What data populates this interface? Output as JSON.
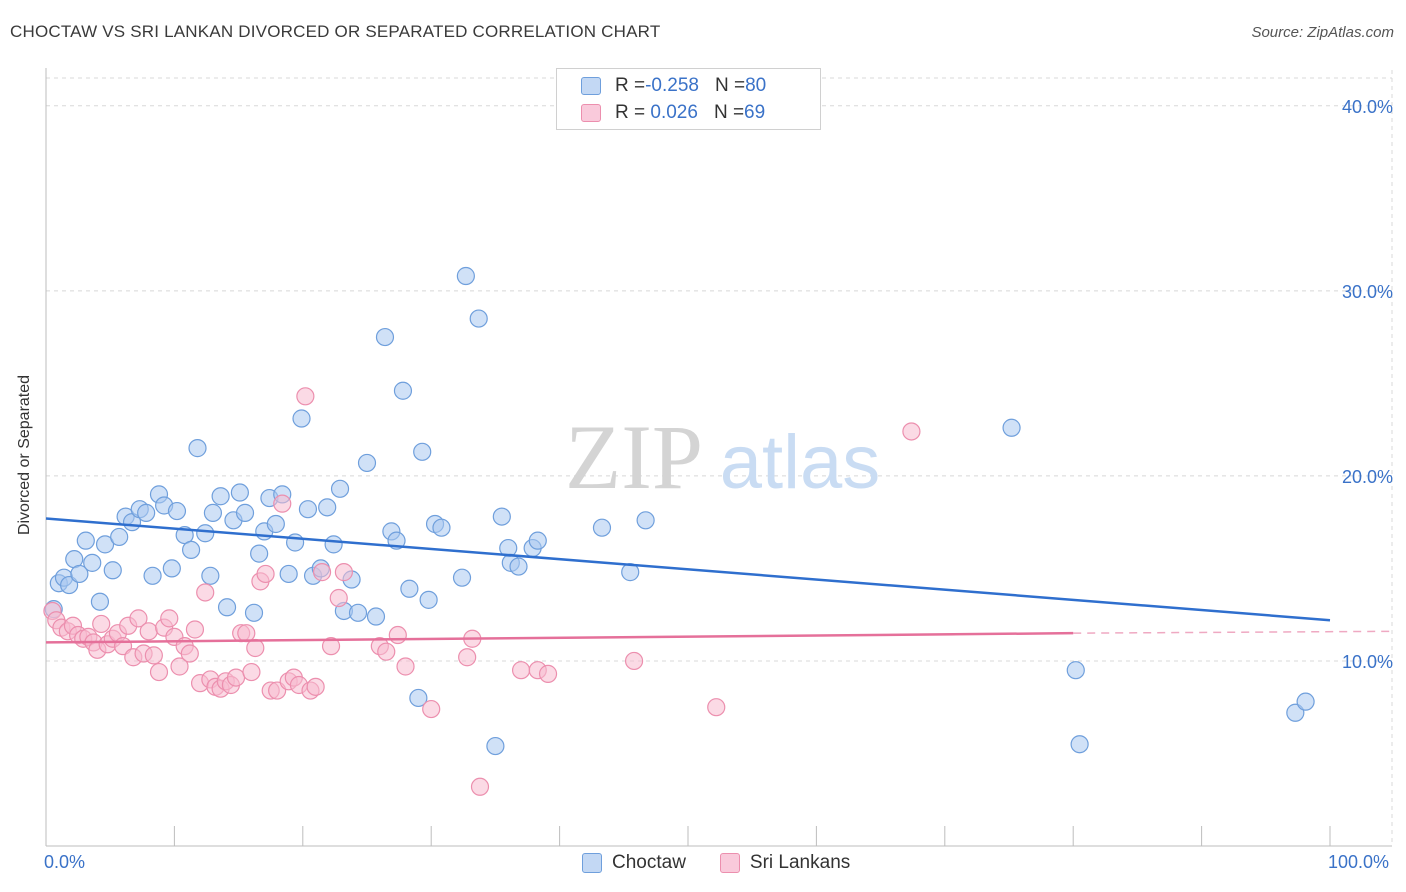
{
  "header": {
    "title": "CHOCTAW VS SRI LANKAN DIVORCED OR SEPARATED CORRELATION CHART",
    "source": "Source: ZipAtlas.com"
  },
  "watermark": {
    "part1": "ZIP",
    "part2": "atlas"
  },
  "legend": {
    "rows": [
      {
        "r_label": "R = ",
        "r_value": "-0.258",
        "n_label": "N = ",
        "n_value": "80"
      },
      {
        "r_label": "R = ",
        "r_value": " 0.026",
        "n_label": "N = ",
        "n_value": "69"
      }
    ]
  },
  "colors": {
    "choctaw_fill": "#a9c8f0",
    "choctaw_stroke": "#6f9fdc",
    "choctaw_line": "#2f6fce",
    "srilankan_fill": "#f7bcd0",
    "srilankan_stroke": "#ec8fae",
    "srilankan_line": "#e5709a",
    "tick_label": "#3a72c8",
    "grid": "#d8d8d8"
  },
  "chart_data": {
    "type": "scatter",
    "title": "CHOCTAW VS SRI LANKAN DIVORCED OR SEPARATED CORRELATION CHART",
    "xlabel": "",
    "ylabel": "Divorced or Separated",
    "xlim": [
      0,
      100
    ],
    "ylim": [
      0,
      41.5
    ],
    "x_tick_labels": [
      "0.0%",
      "100.0%"
    ],
    "y_ticks": [
      10,
      20,
      30,
      40
    ],
    "y_tick_labels": [
      "10.0%",
      "20.0%",
      "30.0%",
      "40.0%"
    ],
    "grid": true,
    "legend_position": "bottom-center",
    "series": [
      {
        "name": "Choctaw",
        "r": -0.258,
        "n": 80,
        "trend": {
          "x": [
            0,
            100
          ],
          "y": [
            17.7,
            12.2
          ]
        },
        "points": [
          [
            0.6,
            12.8
          ],
          [
            1.0,
            14.2
          ],
          [
            1.4,
            14.5
          ],
          [
            1.8,
            14.1
          ],
          [
            2.2,
            15.5
          ],
          [
            2.6,
            14.7
          ],
          [
            3.1,
            16.5
          ],
          [
            3.6,
            15.3
          ],
          [
            4.2,
            13.2
          ],
          [
            4.6,
            16.3
          ],
          [
            5.2,
            14.9
          ],
          [
            5.7,
            16.7
          ],
          [
            6.2,
            17.8
          ],
          [
            6.7,
            17.5
          ],
          [
            7.3,
            18.2
          ],
          [
            7.8,
            18.0
          ],
          [
            8.3,
            14.6
          ],
          [
            8.8,
            19.0
          ],
          [
            9.2,
            18.4
          ],
          [
            9.8,
            15.0
          ],
          [
            10.2,
            18.1
          ],
          [
            10.8,
            16.8
          ],
          [
            11.3,
            16.0
          ],
          [
            11.8,
            21.5
          ],
          [
            12.4,
            16.9
          ],
          [
            12.8,
            14.6
          ],
          [
            13.0,
            18.0
          ],
          [
            13.6,
            18.9
          ],
          [
            14.1,
            12.9
          ],
          [
            14.6,
            17.6
          ],
          [
            15.1,
            19.1
          ],
          [
            15.5,
            18.0
          ],
          [
            16.2,
            12.6
          ],
          [
            16.6,
            15.8
          ],
          [
            17.0,
            17.0
          ],
          [
            17.4,
            18.8
          ],
          [
            17.9,
            17.4
          ],
          [
            18.4,
            19.0
          ],
          [
            18.9,
            14.7
          ],
          [
            19.4,
            16.4
          ],
          [
            19.9,
            23.1
          ],
          [
            20.4,
            18.2
          ],
          [
            20.8,
            14.6
          ],
          [
            21.4,
            15.0
          ],
          [
            21.9,
            18.3
          ],
          [
            22.4,
            16.3
          ],
          [
            22.9,
            19.3
          ],
          [
            23.2,
            12.7
          ],
          [
            23.8,
            14.4
          ],
          [
            24.3,
            12.6
          ],
          [
            25.0,
            20.7
          ],
          [
            25.7,
            12.4
          ],
          [
            26.4,
            27.5
          ],
          [
            26.9,
            17.0
          ],
          [
            27.3,
            16.5
          ],
          [
            27.8,
            24.6
          ],
          [
            28.3,
            13.9
          ],
          [
            29.0,
            8.0
          ],
          [
            29.3,
            21.3
          ],
          [
            29.8,
            13.3
          ],
          [
            30.3,
            17.4
          ],
          [
            30.8,
            17.2
          ],
          [
            32.4,
            14.5
          ],
          [
            32.7,
            30.8
          ],
          [
            33.7,
            28.5
          ],
          [
            35.0,
            5.4
          ],
          [
            35.5,
            17.8
          ],
          [
            36.0,
            16.1
          ],
          [
            36.2,
            15.3
          ],
          [
            36.8,
            15.1
          ],
          [
            37.9,
            16.1
          ],
          [
            38.3,
            16.5
          ],
          [
            43.3,
            17.2
          ],
          [
            45.5,
            14.8
          ],
          [
            46.7,
            17.6
          ],
          [
            75.2,
            22.6
          ],
          [
            80.2,
            9.5
          ],
          [
            80.5,
            5.5
          ],
          [
            97.3,
            7.2
          ],
          [
            98.1,
            7.8
          ]
        ]
      },
      {
        "name": "Sri Lankans",
        "r": 0.026,
        "n": 69,
        "trend": {
          "x": [
            0,
            80
          ],
          "y": [
            11.0,
            11.5
          ],
          "dashed_to": [
            100,
            11.6
          ]
        },
        "points": [
          [
            0.5,
            12.7
          ],
          [
            0.8,
            12.2
          ],
          [
            1.2,
            11.8
          ],
          [
            1.7,
            11.6
          ],
          [
            2.1,
            11.9
          ],
          [
            2.5,
            11.4
          ],
          [
            2.9,
            11.2
          ],
          [
            3.3,
            11.3
          ],
          [
            3.7,
            11.0
          ],
          [
            4.0,
            10.6
          ],
          [
            4.3,
            12.0
          ],
          [
            4.8,
            10.9
          ],
          [
            5.2,
            11.2
          ],
          [
            5.6,
            11.5
          ],
          [
            6.0,
            10.8
          ],
          [
            6.4,
            11.9
          ],
          [
            6.8,
            10.2
          ],
          [
            7.2,
            12.3
          ],
          [
            7.6,
            10.4
          ],
          [
            8.0,
            11.6
          ],
          [
            8.4,
            10.3
          ],
          [
            8.8,
            9.4
          ],
          [
            9.2,
            11.8
          ],
          [
            9.6,
            12.3
          ],
          [
            10.0,
            11.3
          ],
          [
            10.4,
            9.7
          ],
          [
            10.8,
            10.8
          ],
          [
            11.2,
            10.4
          ],
          [
            11.6,
            11.7
          ],
          [
            12.0,
            8.8
          ],
          [
            12.4,
            13.7
          ],
          [
            12.8,
            9.0
          ],
          [
            13.2,
            8.6
          ],
          [
            13.6,
            8.5
          ],
          [
            14.0,
            8.9
          ],
          [
            14.4,
            8.7
          ],
          [
            14.8,
            9.1
          ],
          [
            15.2,
            11.5
          ],
          [
            15.6,
            11.5
          ],
          [
            16.0,
            9.4
          ],
          [
            16.3,
            10.7
          ],
          [
            16.7,
            14.3
          ],
          [
            17.1,
            14.7
          ],
          [
            17.5,
            8.4
          ],
          [
            18.0,
            8.4
          ],
          [
            18.4,
            18.5
          ],
          [
            18.9,
            8.9
          ],
          [
            19.3,
            9.1
          ],
          [
            19.7,
            8.7
          ],
          [
            20.2,
            24.3
          ],
          [
            20.6,
            8.4
          ],
          [
            21.0,
            8.6
          ],
          [
            21.5,
            14.8
          ],
          [
            22.2,
            10.8
          ],
          [
            22.8,
            13.4
          ],
          [
            23.2,
            14.8
          ],
          [
            26.0,
            10.8
          ],
          [
            26.5,
            10.5
          ],
          [
            27.4,
            11.4
          ],
          [
            28.0,
            9.7
          ],
          [
            30.0,
            7.4
          ],
          [
            32.8,
            10.2
          ],
          [
            33.2,
            11.2
          ],
          [
            33.8,
            3.2
          ],
          [
            37.0,
            9.5
          ],
          [
            38.3,
            9.5
          ],
          [
            39.1,
            9.3
          ],
          [
            45.8,
            10.0
          ],
          [
            52.2,
            7.5
          ],
          [
            67.4,
            22.4
          ]
        ]
      }
    ]
  },
  "bottom_legend": {
    "items": [
      "Choctaw",
      "Sri Lankans"
    ]
  }
}
